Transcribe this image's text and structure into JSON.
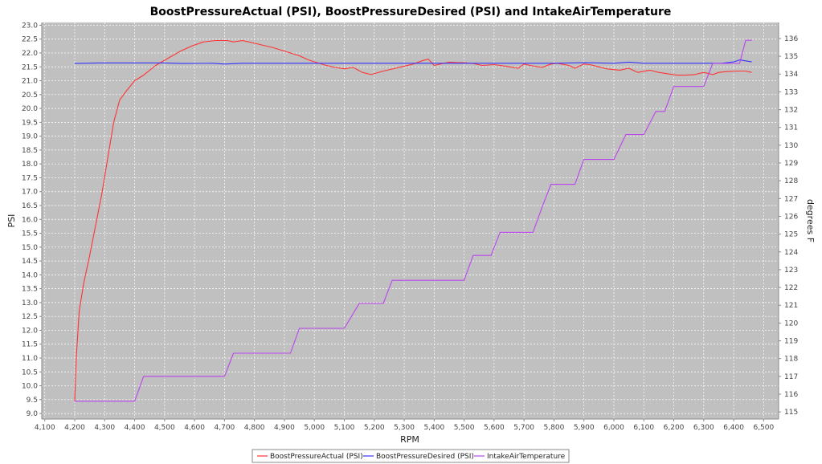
{
  "chart_data": {
    "type": "line",
    "title": "BoostPressureActual (PSI), BoostPressureDesired (PSI) and IntakeAirTemperature",
    "xlabel": "RPM",
    "ylabel": "PSI",
    "y2label": "degrees F",
    "xlim": [
      4090,
      6550
    ],
    "ylim": [
      8.8,
      23.1
    ],
    "y2lim": [
      114.6,
      136.9
    ],
    "xticks": [
      4100,
      4200,
      4300,
      4400,
      4500,
      4600,
      4700,
      4800,
      4900,
      5000,
      5100,
      5200,
      5300,
      5400,
      5500,
      5600,
      5700,
      5800,
      5900,
      6000,
      6100,
      6200,
      6300,
      6400,
      6500
    ],
    "xtick_labels": [
      "4,100",
      "4,200",
      "4,300",
      "4,400",
      "4,500",
      "4,600",
      "4,700",
      "4,800",
      "4,900",
      "5,000",
      "5,100",
      "5,200",
      "5,300",
      "5,400",
      "5,500",
      "5,600",
      "5,700",
      "5,800",
      "5,900",
      "6,000",
      "6,100",
      "6,200",
      "6,300",
      "6,400",
      "6,500"
    ],
    "yticks": [
      9.0,
      9.5,
      10.0,
      10.5,
      11.0,
      11.5,
      12.0,
      12.5,
      13.0,
      13.5,
      14.0,
      14.5,
      15.0,
      15.5,
      16.0,
      16.5,
      17.0,
      17.5,
      18.0,
      18.5,
      19.0,
      19.5,
      20.0,
      20.5,
      21.0,
      21.5,
      22.0,
      22.5,
      23.0
    ],
    "ytick_labels": [
      "9.0",
      "9.5",
      "10.0",
      "10.5",
      "11.0",
      "11.5",
      "12.0",
      "12.5",
      "13.0",
      "13.5",
      "14.0",
      "14.5",
      "15.0",
      "15.5",
      "16.0",
      "16.5",
      "17.0",
      "17.5",
      "18.0",
      "18.5",
      "19.0",
      "19.5",
      "20.0",
      "20.5",
      "21.0",
      "21.5",
      "22.0",
      "22.5",
      "23.0"
    ],
    "y2ticks": [
      115,
      116,
      117,
      118,
      119,
      120,
      121,
      122,
      123,
      124,
      125,
      126,
      127,
      128,
      129,
      130,
      131,
      132,
      133,
      134,
      135,
      136
    ],
    "y2tick_labels": [
      "115",
      "116",
      "117",
      "118",
      "119",
      "120",
      "121",
      "122",
      "123",
      "124",
      "125",
      "126",
      "127",
      "128",
      "129",
      "130",
      "131",
      "132",
      "133",
      "134",
      "135",
      "136"
    ],
    "grid": true,
    "legend_position": "bottom",
    "series": [
      {
        "name": "BoostPressureActual (PSI)",
        "axis": "left",
        "color": "#ff3333",
        "x": [
          4200,
          4205,
          4215,
          4230,
          4250,
          4270,
          4290,
          4310,
          4330,
          4350,
          4370,
          4400,
          4430,
          4470,
          4510,
          4550,
          4590,
          4630,
          4670,
          4710,
          4730,
          4760,
          4790,
          4820,
          4860,
          4890,
          4920,
          4950,
          4980,
          5010,
          5040,
          5070,
          5100,
          5130,
          5160,
          5190,
          5230,
          5260,
          5290,
          5330,
          5360,
          5380,
          5400,
          5420,
          5450,
          5480,
          5500,
          5530,
          5560,
          5600,
          5640,
          5680,
          5700,
          5720,
          5760,
          5790,
          5810,
          5850,
          5870,
          5900,
          5920,
          5950,
          5980,
          6020,
          6050,
          6080,
          6120,
          6150,
          6180,
          6210,
          6240,
          6270,
          6300,
          6330,
          6350,
          6380,
          6420,
          6440,
          6460
        ],
        "y": [
          9.45,
          11.0,
          12.7,
          13.7,
          14.7,
          15.8,
          16.9,
          18.2,
          19.5,
          20.3,
          20.6,
          21.0,
          21.2,
          21.55,
          21.8,
          22.05,
          22.25,
          22.4,
          22.45,
          22.45,
          22.4,
          22.45,
          22.38,
          22.3,
          22.2,
          22.1,
          22.0,
          21.9,
          21.75,
          21.65,
          21.55,
          21.48,
          21.43,
          21.48,
          21.3,
          21.22,
          21.35,
          21.42,
          21.5,
          21.6,
          21.72,
          21.78,
          21.55,
          21.6,
          21.67,
          21.65,
          21.65,
          21.62,
          21.55,
          21.58,
          21.52,
          21.45,
          21.6,
          21.55,
          21.48,
          21.6,
          21.63,
          21.55,
          21.45,
          21.6,
          21.58,
          21.5,
          21.42,
          21.38,
          21.45,
          21.3,
          21.38,
          21.3,
          21.25,
          21.2,
          21.2,
          21.22,
          21.3,
          21.22,
          21.3,
          21.33,
          21.35,
          21.35,
          21.3
        ]
      },
      {
        "name": "BoostPressureDesired (PSI)",
        "axis": "left",
        "color": "#3333ff",
        "x": [
          4200,
          4280,
          4400,
          4500,
          4560,
          4660,
          4700,
          4760,
          4900,
          5000,
          5200,
          5400,
          5500,
          5600,
          5800,
          5900,
          6000,
          6050,
          6100,
          6200,
          6300,
          6360,
          6400,
          6420,
          6460
        ],
        "y": [
          21.62,
          21.64,
          21.64,
          21.64,
          21.62,
          21.63,
          21.6,
          21.63,
          21.63,
          21.63,
          21.63,
          21.63,
          21.63,
          21.63,
          21.63,
          21.65,
          21.63,
          21.67,
          21.63,
          21.63,
          21.63,
          21.63,
          21.68,
          21.75,
          21.68
        ]
      },
      {
        "name": "IntakeAirTemperature",
        "axis": "right",
        "color": "#bb44ee",
        "x": [
          4200,
          4400,
          4430,
          4700,
          4730,
          4920,
          4950,
          5100,
          5150,
          5230,
          5260,
          5500,
          5530,
          5590,
          5620,
          5730,
          5760,
          5790,
          5870,
          5900,
          6000,
          6040,
          6100,
          6140,
          6170,
          6200,
          6240,
          6300,
          6330,
          6420,
          6440,
          6460
        ],
        "y": [
          115.6,
          115.6,
          117.0,
          117.0,
          118.3,
          118.3,
          119.7,
          119.7,
          121.1,
          121.1,
          122.4,
          122.4,
          123.8,
          123.8,
          125.1,
          125.1,
          126.5,
          127.8,
          127.8,
          129.2,
          129.2,
          130.6,
          130.6,
          131.9,
          131.9,
          133.3,
          133.3,
          133.3,
          134.6,
          134.6,
          135.9,
          135.9
        ]
      }
    ]
  }
}
